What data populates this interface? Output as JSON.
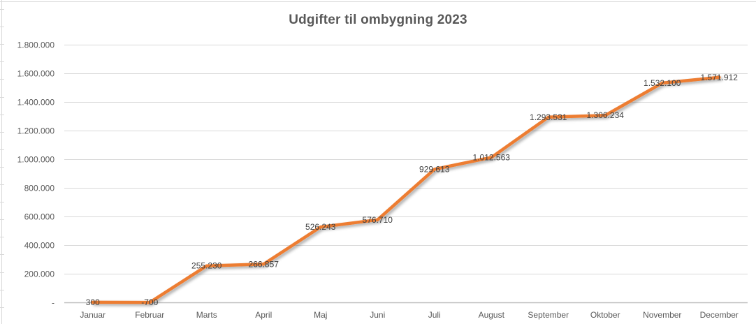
{
  "chart_data": {
    "type": "line",
    "title": "Udgifter til ombygning 2023",
    "categories": [
      "Januar",
      "Februar",
      "Marts",
      "April",
      "Maj",
      "Juni",
      "Juli",
      "August",
      "September",
      "Oktober",
      "November",
      "December"
    ],
    "values": [
      300,
      -700,
      255230,
      266857,
      526243,
      576710,
      929613,
      1012563,
      1293531,
      1306234,
      1532100,
      1571912
    ],
    "data_labels": [
      "300",
      "-700",
      "255.230",
      "266.857",
      "526.243",
      "576.710",
      "929.613",
      "1.012.563",
      "1.293.531",
      "1.306.234",
      "1.532.100",
      "1.571.912"
    ],
    "xlabel": "",
    "ylabel": "",
    "ylim": [
      0,
      1800000
    ],
    "ytick_interval": 200000,
    "ytick_labels_bottom_to_top": [
      "-",
      "200.000",
      "400.000",
      "600.000",
      "800.000",
      "1.000.000",
      "1.200.000",
      "1.400.000",
      "1.600.000",
      "1.800.000"
    ],
    "grid": true,
    "legend": false,
    "data_label_position": "center",
    "colors": {
      "line": "#ED7D31",
      "title_text": "#595959",
      "axis_text": "#595959",
      "data_label_text": "#404040",
      "gridline": "#D9D9D9",
      "axis_line": "#BFBFBF",
      "background": "#FFFFFF",
      "sheet_gridline": "#D9D9D9"
    }
  }
}
